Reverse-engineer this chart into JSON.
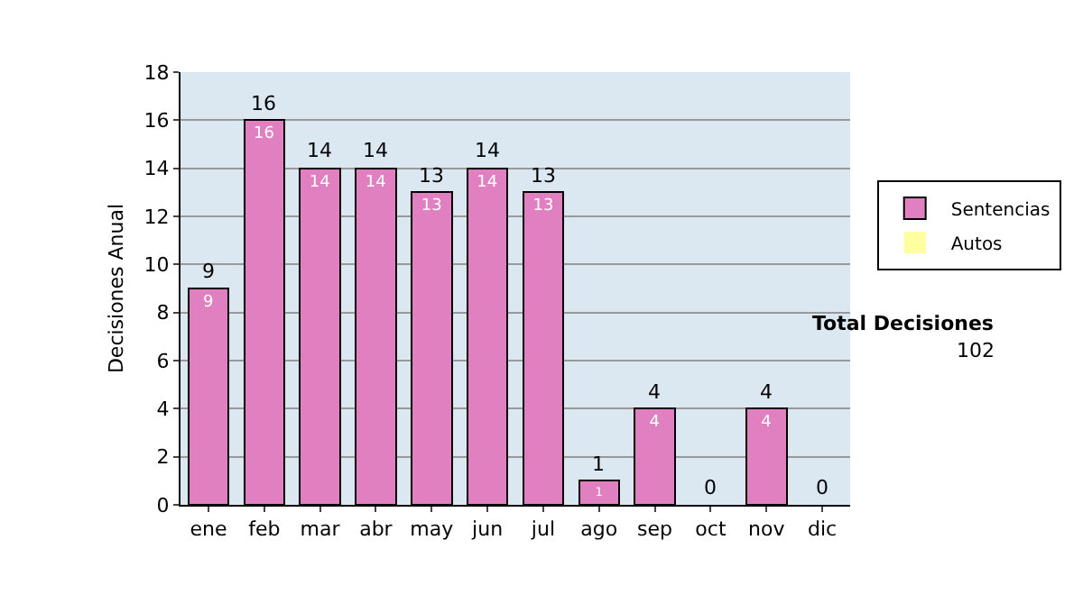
{
  "chart_data": {
    "type": "bar",
    "stacked": true,
    "ylabel": "Decisiones Anual",
    "categories": [
      "ene",
      "feb",
      "mar",
      "abr",
      "may",
      "jun",
      "jul",
      "ago",
      "sep",
      "oct",
      "nov",
      "dic"
    ],
    "series": [
      {
        "name": "Sentencias",
        "color": "#e080c0",
        "values": [
          9,
          16,
          14,
          14,
          13,
          14,
          13,
          1,
          4,
          0,
          4,
          0
        ],
        "value_labels": [
          "9",
          "16",
          "14",
          "14",
          "13",
          "14",
          "13",
          "1",
          "4",
          null,
          "4",
          null
        ]
      },
      {
        "name": "Autos",
        "color": "#ffffa0",
        "values": [
          0,
          0,
          0,
          0,
          0,
          0,
          0,
          0,
          0,
          0,
          0,
          0
        ]
      }
    ],
    "totals": [
      "9",
      "16",
      "14",
      "14",
      "13",
      "14",
      "13",
      "1",
      "4",
      "0",
      "4",
      "0"
    ],
    "ylim": [
      0,
      18
    ],
    "yticks": [
      0,
      2,
      4,
      6,
      8,
      10,
      12,
      14,
      16,
      18
    ],
    "grid": "y",
    "legend": "right",
    "annotations": [
      "Total Decisiones",
      "102"
    ]
  }
}
